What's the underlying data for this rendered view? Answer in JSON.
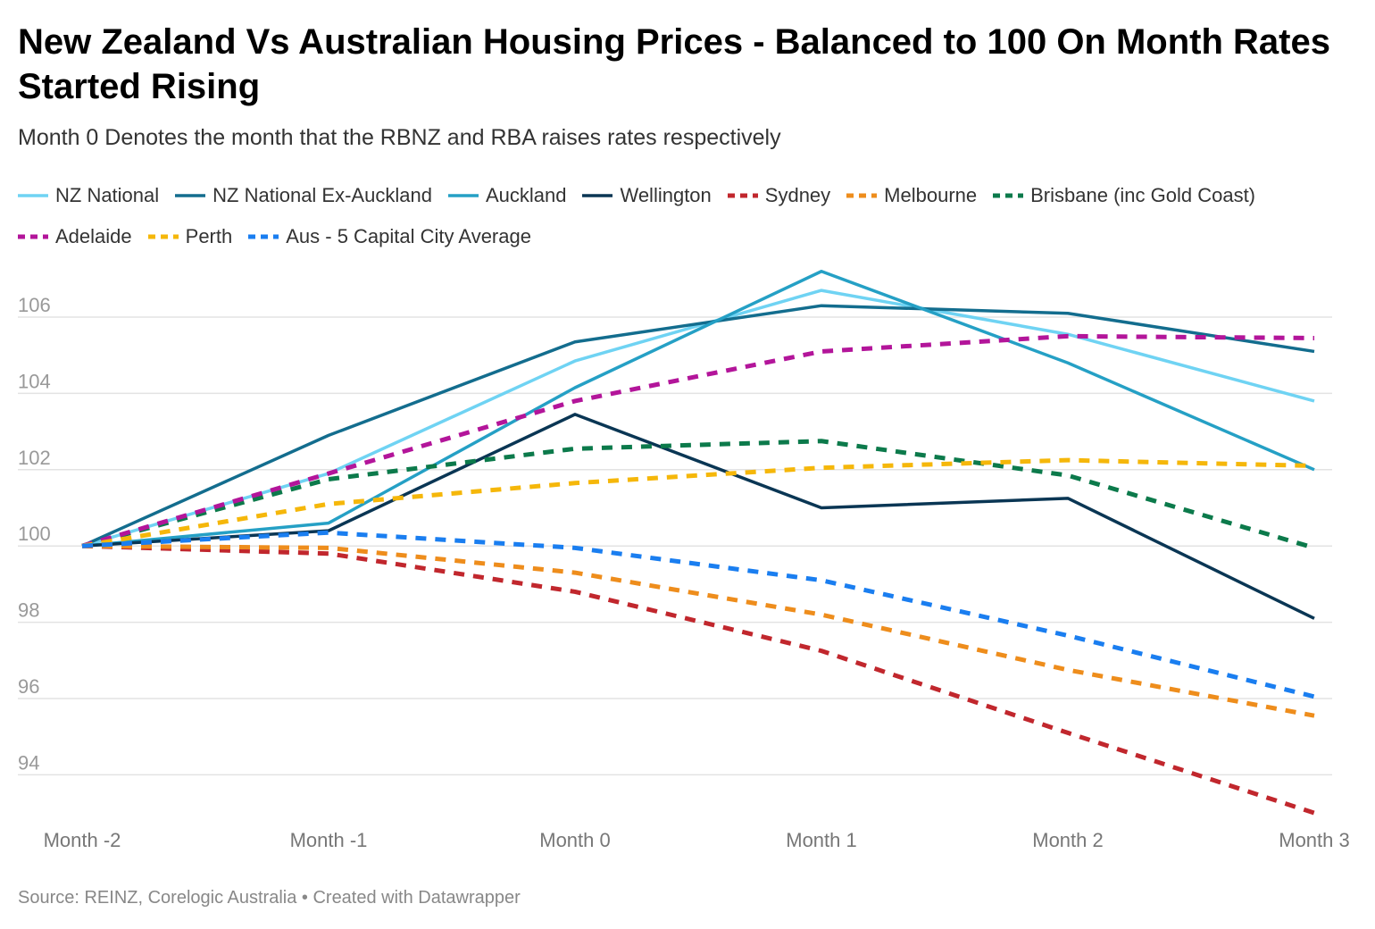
{
  "header": {
    "title": "New Zealand Vs Australian Housing Prices - Balanced to 100 On Month Rates Started Rising",
    "subtitle": "Month 0 Denotes the month that the RBNZ and RBA raises rates respectively"
  },
  "footer": {
    "source": "Source: REINZ, Corelogic Australia • Created with Datawrapper"
  },
  "chart_data": {
    "type": "line",
    "categories": [
      "Month -2",
      "Month -1",
      "Month 0",
      "Month 1",
      "Month 2",
      "Month 3"
    ],
    "ylim": [
      93,
      107.5
    ],
    "yticks": [
      94,
      96,
      98,
      100,
      102,
      104,
      106
    ],
    "grid": true,
    "legend_position": "top-left",
    "series": [
      {
        "name": "NZ National",
        "color": "#6fd3f3",
        "style": "solid",
        "values": [
          100,
          101.9,
          104.85,
          106.7,
          105.55,
          103.8
        ]
      },
      {
        "name": "NZ National Ex-Auckland",
        "color": "#136d8e",
        "style": "solid",
        "values": [
          100,
          102.9,
          105.35,
          106.3,
          106.1,
          105.1
        ]
      },
      {
        "name": "Auckland",
        "color": "#25a0c5",
        "style": "solid",
        "values": [
          100,
          100.6,
          104.15,
          107.2,
          104.8,
          102
        ]
      },
      {
        "name": "Wellington",
        "color": "#0a3654",
        "style": "solid",
        "values": [
          100,
          100.4,
          103.45,
          101,
          101.25,
          98.1
        ]
      },
      {
        "name": "Sydney",
        "color": "#c1272d",
        "style": "dashed",
        "values": [
          100,
          99.8,
          98.8,
          97.25,
          95.1,
          93
        ]
      },
      {
        "name": "Melbourne",
        "color": "#ee8d1c",
        "style": "dashed",
        "values": [
          100,
          99.95,
          99.3,
          98.2,
          96.75,
          95.55
        ]
      },
      {
        "name": "Brisbane (inc Gold Coast)",
        "color": "#0c7a4b",
        "style": "dashed",
        "values": [
          100,
          101.75,
          102.55,
          102.75,
          101.85,
          99.95
        ]
      },
      {
        "name": "Adelaide",
        "color": "#b3159a",
        "style": "dashed",
        "values": [
          100,
          101.9,
          103.8,
          105.1,
          105.5,
          105.45
        ]
      },
      {
        "name": "Perth",
        "color": "#f5b70a",
        "style": "dashed",
        "values": [
          100,
          101.1,
          101.65,
          102.05,
          102.25,
          102.1
        ]
      },
      {
        "name": "Aus - 5 Capital City Average",
        "color": "#1a7ef0",
        "style": "dashed",
        "values": [
          100,
          100.35,
          99.95,
          99.1,
          97.65,
          96.05
        ]
      }
    ]
  }
}
